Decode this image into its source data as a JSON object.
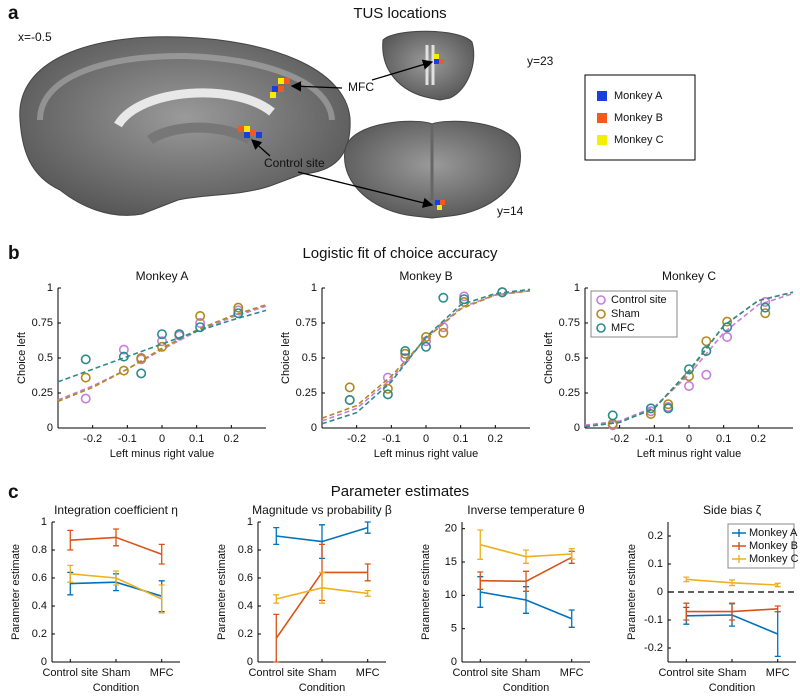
{
  "panel_labels": [
    "a",
    "b",
    "c"
  ],
  "section_titles": [
    "TUS locations",
    "Logistic fit of choice accuracy",
    "Parameter estimates"
  ],
  "brain_figure": {
    "slice_labels": [
      "x=-0.5",
      "y=23",
      "y=14"
    ],
    "annotations": [
      "MFC",
      "Control site"
    ],
    "legend": [
      {
        "name": "Monkey A",
        "color": "#1a3fe0"
      },
      {
        "name": "Monkey B",
        "color": "#f05a1e"
      },
      {
        "name": "Monkey C",
        "color": "#f5ee00"
      }
    ]
  },
  "chart_data": [
    {
      "type": "scatter",
      "title": "Monkey A",
      "xlabel": "Left minus right value",
      "ylabel": "Choice left",
      "x": [
        -0.22,
        -0.11,
        -0.06,
        0,
        0.05,
        0.11,
        0.22
      ],
      "xlim": [
        -0.3,
        0.3
      ],
      "xticks": [
        -0.2,
        -0.1,
        0,
        0.1,
        0.2
      ],
      "ylim": [
        0,
        1
      ],
      "yticks": [
        0,
        0.25,
        0.5,
        0.75,
        1
      ],
      "fit_x": [
        -0.3,
        -0.2,
        -0.1,
        0,
        0.1,
        0.2,
        0.3
      ],
      "series": [
        {
          "color": "#c77ddd",
          "values": [
            0.21,
            0.56,
            0.49,
            0.62,
            0.66,
            0.75,
            0.84
          ],
          "fit": [
            0.2,
            0.3,
            0.42,
            0.56,
            0.69,
            0.79,
            0.87
          ]
        },
        {
          "color": "#b08a1e",
          "values": [
            0.36,
            0.41,
            0.5,
            0.58,
            0.67,
            0.8,
            0.86
          ],
          "fit": [
            0.19,
            0.29,
            0.42,
            0.57,
            0.7,
            0.8,
            0.88
          ]
        },
        {
          "color": "#2b8c8c",
          "values": [
            0.49,
            0.51,
            0.39,
            0.67,
            0.67,
            0.72,
            0.82
          ],
          "fit": [
            0.33,
            0.42,
            0.51,
            0.6,
            0.69,
            0.77,
            0.84
          ]
        }
      ]
    },
    {
      "type": "scatter",
      "title": "Monkey B",
      "xlabel": "Left minus right value",
      "ylabel": "Choice left",
      "x": [
        -0.22,
        -0.11,
        -0.06,
        0,
        0.05,
        0.11,
        0.22
      ],
      "xlim": [
        -0.3,
        0.3
      ],
      "xticks": [
        -0.2,
        -0.1,
        0,
        0.1,
        0.2
      ],
      "ylim": [
        0,
        1
      ],
      "yticks": [
        0,
        0.25,
        0.5,
        0.75,
        1
      ],
      "fit_x": [
        -0.3,
        -0.2,
        -0.1,
        0,
        0.1,
        0.2,
        0.3
      ],
      "series": [
        {
          "color": "#c77ddd",
          "values": [
            0.2,
            0.36,
            0.5,
            0.62,
            0.72,
            0.94,
            0.97
          ],
          "fit": [
            0.05,
            0.14,
            0.35,
            0.64,
            0.86,
            0.95,
            0.98
          ]
        },
        {
          "color": "#b08a1e",
          "values": [
            0.29,
            0.28,
            0.53,
            0.65,
            0.68,
            0.9,
            0.97
          ],
          "fit": [
            0.07,
            0.16,
            0.37,
            0.64,
            0.85,
            0.95,
            0.98
          ]
        },
        {
          "color": "#2b8c8c",
          "values": [
            0.2,
            0.24,
            0.55,
            0.58,
            0.93,
            0.92,
            0.97
          ],
          "fit": [
            0.03,
            0.11,
            0.33,
            0.65,
            0.88,
            0.96,
            0.99
          ]
        }
      ]
    },
    {
      "type": "scatter",
      "title": "Monkey C",
      "xlabel": "Left minus right value",
      "ylabel": "Choice left",
      "x": [
        -0.22,
        -0.11,
        -0.06,
        0,
        0.05,
        0.11,
        0.22
      ],
      "xlim": [
        -0.3,
        0.3
      ],
      "xticks": [
        -0.2,
        -0.1,
        0,
        0.1,
        0.2
      ],
      "ylim": [
        0,
        1
      ],
      "yticks": [
        0,
        0.25,
        0.5,
        0.75,
        1
      ],
      "fit_x": [
        -0.3,
        -0.2,
        -0.1,
        0,
        0.1,
        0.2,
        0.3
      ],
      "legend": "upper left",
      "series": [
        {
          "name": "Control site",
          "color": "#c77ddd",
          "values": [
            0.02,
            0.12,
            0.15,
            0.3,
            0.38,
            0.65,
            0.9
          ],
          "fit": [
            0.02,
            0.05,
            0.15,
            0.38,
            0.68,
            0.88,
            0.96
          ]
        },
        {
          "name": "Sham",
          "color": "#b08a1e",
          "values": [
            0.03,
            0.1,
            0.17,
            0.37,
            0.62,
            0.76,
            0.82
          ],
          "fit": [
            0.01,
            0.04,
            0.14,
            0.4,
            0.73,
            0.91,
            0.97
          ]
        },
        {
          "name": "MFC",
          "color": "#2b8c8c",
          "values": [
            0.09,
            0.14,
            0.14,
            0.42,
            0.55,
            0.72,
            0.86
          ],
          "fit": [
            0.01,
            0.04,
            0.14,
            0.41,
            0.73,
            0.91,
            0.97
          ]
        }
      ]
    },
    {
      "type": "line",
      "title": "Integration coefficient η",
      "xlabel": "Condition",
      "ylabel": "Parameter estimate",
      "categories": [
        "Control site",
        "Sham",
        "MFC"
      ],
      "ylim": [
        0,
        1
      ],
      "yticks": [
        0,
        0.2,
        0.4,
        0.6,
        0.8,
        1
      ],
      "series": [
        {
          "color": "#0072bd",
          "values": [
            0.56,
            0.57,
            0.47
          ],
          "errors": [
            0.08,
            0.06,
            0.11
          ]
        },
        {
          "color": "#d95319",
          "values": [
            0.87,
            0.89,
            0.77
          ],
          "errors": [
            0.07,
            0.06,
            0.07
          ]
        },
        {
          "color": "#edb120",
          "values": [
            0.63,
            0.6,
            0.45
          ],
          "errors": [
            0.06,
            0.05,
            0.1
          ]
        }
      ]
    },
    {
      "type": "line",
      "title": "Magnitude vs probability β",
      "xlabel": "Condition",
      "ylabel": "Parameter estimate",
      "categories": [
        "Control site",
        "Sham",
        "MFC"
      ],
      "ylim": [
        0,
        1
      ],
      "yticks": [
        0,
        0.2,
        0.4,
        0.6,
        0.8,
        1
      ],
      "series": [
        {
          "color": "#0072bd",
          "values": [
            0.9,
            0.86,
            0.96
          ],
          "errors": [
            0.06,
            0.12,
            0.04
          ]
        },
        {
          "color": "#d95319",
          "values": [
            0.17,
            0.64,
            0.64
          ],
          "errors": [
            0.17,
            0.2,
            0.06
          ]
        },
        {
          "color": "#edb120",
          "values": [
            0.45,
            0.53,
            0.49
          ],
          "errors": [
            0.03,
            0.11,
            0.02
          ]
        }
      ]
    },
    {
      "type": "line",
      "title": "Inverse temperature θ",
      "xlabel": "Condition",
      "ylabel": "Parameter estimate",
      "categories": [
        "Control site",
        "Sham",
        "MFC"
      ],
      "ylim": [
        0,
        21
      ],
      "yticks": [
        0,
        5,
        10,
        15,
        20
      ],
      "series": [
        {
          "color": "#0072bd",
          "values": [
            10.5,
            9.3,
            6.5
          ],
          "errors": [
            2.3,
            2,
            1.3
          ]
        },
        {
          "color": "#d95319",
          "values": [
            12.2,
            12.1,
            15.7
          ],
          "errors": [
            1.3,
            1.5,
            0.9
          ]
        },
        {
          "color": "#edb120",
          "values": [
            17.6,
            15.8,
            16.2
          ],
          "errors": [
            2.2,
            1,
            0.8
          ]
        }
      ]
    },
    {
      "type": "line",
      "title": "Side bias ζ",
      "xlabel": "Condition",
      "ylabel": "Parameter estimate",
      "categories": [
        "Control site",
        "Sham",
        "MFC"
      ],
      "ylim": [
        -0.25,
        0.25
      ],
      "yticks": [
        -0.2,
        -0.1,
        0,
        0.1,
        0.2
      ],
      "reference_line": 0,
      "legend": "upper right",
      "series": [
        {
          "name": "Monkey A",
          "color": "#0072bd",
          "values": [
            -0.085,
            -0.082,
            -0.15
          ],
          "errors": [
            0.03,
            0.04,
            0.08
          ]
        },
        {
          "name": "Monkey B",
          "color": "#d95319",
          "values": [
            -0.07,
            -0.07,
            -0.06
          ],
          "errors": [
            0.03,
            0.03,
            0.01
          ]
        },
        {
          "name": "Monkey C",
          "color": "#edb120",
          "values": [
            0.045,
            0.033,
            0.025
          ],
          "errors": [
            0.008,
            0.01,
            0.006
          ]
        }
      ]
    }
  ]
}
